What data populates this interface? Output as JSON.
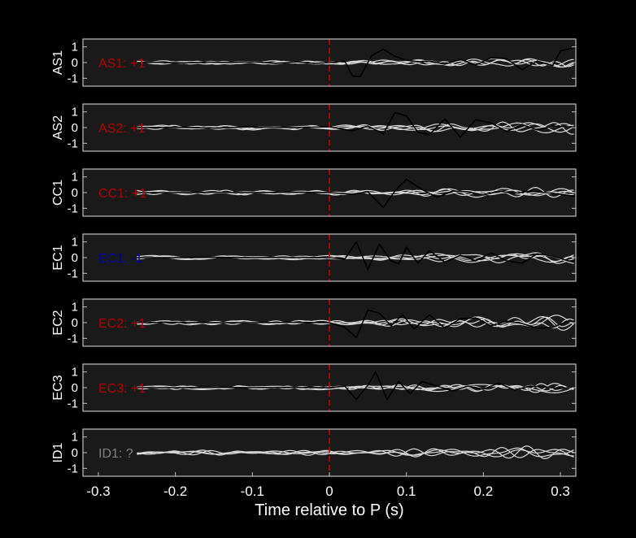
{
  "chart_data": {
    "type": "line",
    "xlabel": "Time relative to P (s)",
    "xlim": [
      -0.32,
      0.32
    ],
    "xticks": [
      -0.3,
      -0.2,
      -0.1,
      0,
      0.1,
      0.2,
      0.3
    ],
    "xtick_labels": [
      "-0.3",
      "-0.2",
      "-0.1",
      "0",
      "0.1",
      "0.2",
      "0.3"
    ],
    "ylim": [
      -1.5,
      1.5
    ],
    "yticks": [
      -1,
      0,
      1
    ],
    "ytick_labels": [
      "-1",
      "0",
      "1"
    ],
    "p_arrival_time": 0,
    "colors": {
      "background": "#000000",
      "panel": "#1a1a1a",
      "axis": "#bfbfbf",
      "text": "#ffffff",
      "marker": "#cc0000",
      "trace": "#000000",
      "overlay": "#d9d9d9",
      "polarity_up": "#b30000",
      "polarity_down": "#0000aa",
      "polarity_unknown": "#808080"
    },
    "panels": [
      {
        "station": "AS1",
        "annotation": "AS1: +1",
        "annotation_color": "#b30000",
        "has_trace": true,
        "trace": {
          "x": [
            -0.25,
            -0.22,
            -0.19,
            -0.16,
            -0.13,
            -0.1,
            -0.07,
            -0.04,
            -0.02,
            0.0,
            0.02,
            0.03,
            0.04,
            0.055,
            0.07,
            0.085,
            0.1,
            0.115,
            0.13,
            0.15,
            0.17,
            0.19,
            0.21,
            0.23,
            0.25,
            0.27,
            0.29,
            0.3,
            0.32
          ],
          "y": [
            0.0,
            0.02,
            -0.02,
            0.03,
            0.0,
            0.05,
            -0.05,
            0.05,
            -0.05,
            0.0,
            0.1,
            -0.85,
            -0.9,
            0.45,
            0.85,
            0.4,
            0.15,
            0.05,
            0.1,
            -0.1,
            0.2,
            -0.15,
            0.3,
            0.25,
            -0.45,
            0.1,
            -0.2,
            0.75,
            0.95
          ]
        }
      },
      {
        "station": "AS2",
        "annotation": "AS2: +1",
        "annotation_color": "#b30000",
        "has_trace": true,
        "trace": {
          "x": [
            -0.25,
            -0.2,
            -0.15,
            -0.1,
            -0.05,
            0.0,
            0.03,
            0.05,
            0.07,
            0.085,
            0.1,
            0.115,
            0.13,
            0.15,
            0.17,
            0.19,
            0.21,
            0.23,
            0.25,
            0.27,
            0.29,
            0.31,
            0.32
          ],
          "y": [
            0.0,
            0.02,
            -0.03,
            0.05,
            0.0,
            0.05,
            -0.2,
            0.1,
            -0.4,
            0.95,
            0.75,
            -0.3,
            -0.45,
            0.55,
            -0.6,
            0.5,
            0.3,
            -0.25,
            0.2,
            -0.15,
            0.1,
            0.05,
            0.05
          ]
        }
      },
      {
        "station": "CC1",
        "annotation": "CC1: +1",
        "annotation_color": "#b30000",
        "has_trace": true,
        "trace": {
          "x": [
            -0.25,
            -0.2,
            -0.15,
            -0.1,
            -0.05,
            0.0,
            0.03,
            0.05,
            0.07,
            0.085,
            0.1,
            0.12,
            0.14,
            0.16,
            0.18,
            0.2,
            0.22,
            0.24,
            0.26,
            0.28,
            0.3,
            0.32
          ],
          "y": [
            0.0,
            0.0,
            0.02,
            0.0,
            0.03,
            0.0,
            -0.1,
            0.05,
            -0.95,
            0.1,
            0.85,
            0.2,
            -0.3,
            0.1,
            0.05,
            -0.15,
            0.1,
            -0.05,
            0.1,
            0.0,
            -0.1,
            -0.25
          ]
        }
      },
      {
        "station": "EC1",
        "annotation": "EC1: -1",
        "annotation_color": "#0000aa",
        "has_trace": true,
        "trace": {
          "x": [
            -0.25,
            -0.2,
            -0.15,
            -0.1,
            -0.05,
            0.0,
            0.02,
            0.035,
            0.05,
            0.065,
            0.08,
            0.09,
            0.1,
            0.115,
            0.13,
            0.15,
            0.17,
            0.19,
            0.21,
            0.23,
            0.25,
            0.27,
            0.29,
            0.31,
            0.32
          ],
          "y": [
            0.0,
            0.0,
            0.02,
            0.0,
            0.02,
            0.0,
            -0.1,
            1.0,
            -0.75,
            0.85,
            -0.2,
            -0.4,
            0.65,
            -0.35,
            0.45,
            -0.3,
            0.15,
            -0.2,
            0.3,
            -0.2,
            -0.35,
            0.25,
            0.1,
            -0.2,
            -0.25
          ]
        }
      },
      {
        "station": "EC2",
        "annotation": "EC2: +1",
        "annotation_color": "#b30000",
        "has_trace": true,
        "trace": {
          "x": [
            -0.25,
            -0.2,
            -0.15,
            -0.1,
            -0.05,
            0.0,
            0.02,
            0.035,
            0.05,
            0.065,
            0.08,
            0.095,
            0.11,
            0.13,
            0.15,
            0.17,
            0.19,
            0.21,
            0.23,
            0.25,
            0.27,
            0.29,
            0.31,
            0.32
          ],
          "y": [
            0.0,
            0.02,
            0.0,
            0.0,
            0.02,
            0.0,
            -0.3,
            -0.95,
            0.8,
            0.6,
            -0.2,
            0.5,
            -0.4,
            0.5,
            -0.35,
            0.25,
            0.3,
            -0.2,
            0.1,
            -0.05,
            -0.35,
            -0.3,
            0.1,
            0.05
          ]
        }
      },
      {
        "station": "EC3",
        "annotation": "EC3: +1",
        "annotation_color": "#b30000",
        "has_trace": true,
        "trace": {
          "x": [
            -0.25,
            -0.2,
            -0.15,
            -0.1,
            -0.05,
            0.0,
            0.02,
            0.035,
            0.05,
            0.06,
            0.075,
            0.09,
            0.105,
            0.12,
            0.14,
            0.16,
            0.18,
            0.2,
            0.22,
            0.24,
            0.26,
            0.28,
            0.3,
            0.32
          ],
          "y": [
            0.0,
            0.0,
            0.02,
            0.0,
            0.02,
            0.0,
            0.1,
            -0.75,
            0.15,
            1.0,
            -0.75,
            0.4,
            -0.4,
            0.4,
            0.1,
            -0.2,
            0.1,
            -0.1,
            0.3,
            -0.15,
            0.1,
            0.05,
            -0.05,
            0.05
          ]
        }
      },
      {
        "station": "ID1",
        "annotation": "ID1: ?",
        "annotation_color": "#808080",
        "has_trace": false,
        "trace": null
      }
    ]
  }
}
